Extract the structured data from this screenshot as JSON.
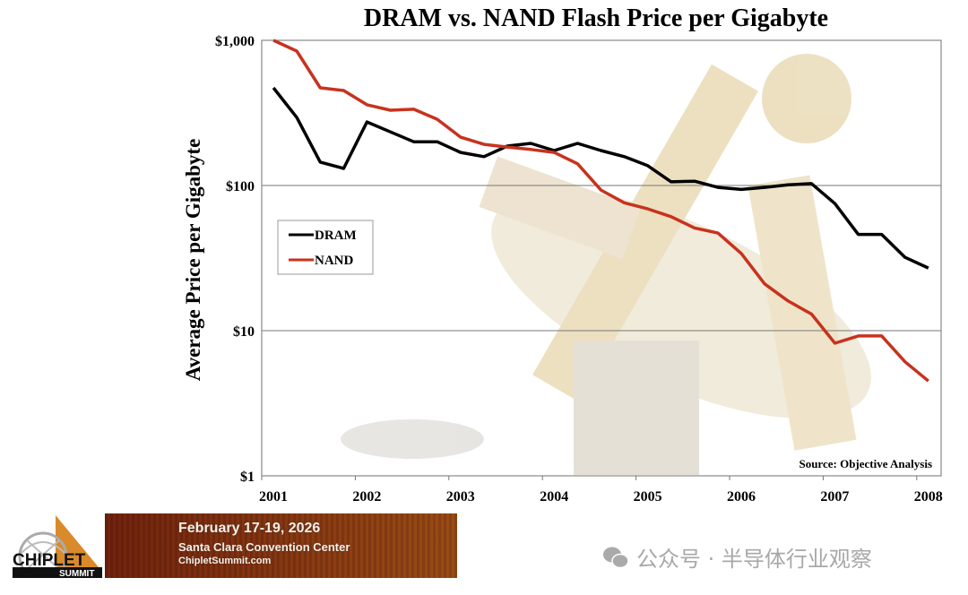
{
  "chart_data": {
    "type": "line",
    "title": "DRAM vs. NAND Flash Price per Gigabyte",
    "xlabel": "",
    "ylabel": "Average Price per Gigabyte",
    "yscale": "log",
    "ylim": [
      1,
      1000
    ],
    "xlim": [
      2001,
      2008.25
    ],
    "x_ticks": [
      "2001",
      "2002",
      "2003",
      "2004",
      "2005",
      "2006",
      "2007",
      "2008"
    ],
    "y_ticks": [
      {
        "value": 1,
        "label": "$1"
      },
      {
        "value": 10,
        "label": "$10"
      },
      {
        "value": 100,
        "label": "$100"
      },
      {
        "value": 1000,
        "label": "$1,000"
      }
    ],
    "grid": "horizontal major",
    "legend_placement": "left",
    "annotation": "Source: Objective Analysis",
    "x": [
      2001.125,
      2001.375,
      2001.625,
      2001.875,
      2002.125,
      2002.375,
      2002.625,
      2002.875,
      2003.125,
      2003.375,
      2003.625,
      2003.875,
      2004.125,
      2004.375,
      2004.625,
      2004.875,
      2005.125,
      2005.375,
      2005.625,
      2005.875,
      2006.125,
      2006.375,
      2006.625,
      2006.875,
      2007.125,
      2007.375,
      2007.625,
      2007.875,
      2008.125
    ],
    "series": [
      {
        "name": "DRAM",
        "color": "#000000",
        "values": [
          471,
          294,
          145,
          131,
          274,
          234,
          200,
          200,
          169,
          158,
          187,
          195,
          174,
          195,
          174,
          158,
          137,
          106,
          107,
          97,
          94,
          97,
          101,
          103,
          75,
          46,
          46,
          32,
          27
        ]
      },
      {
        "name": "NAND",
        "color": "#c8321e",
        "values": [
          1000,
          843,
          471,
          451,
          360,
          330,
          335,
          286,
          215,
          192,
          184,
          177,
          169,
          141,
          93,
          76,
          69,
          61,
          51,
          47,
          34,
          21,
          16,
          13,
          8.2,
          9.2,
          9.2,
          6.1,
          4.5
        ]
      }
    ]
  },
  "banner": {
    "logo_text": "CHIPLET SUMMIT",
    "date": "February 17-19, 2026",
    "venue": "Santa Clara Convention Center",
    "site": "ChipletSummit.com"
  },
  "watermark": {
    "icon": "wechat-icon",
    "text": "公众号 · 半导体行业观察"
  }
}
